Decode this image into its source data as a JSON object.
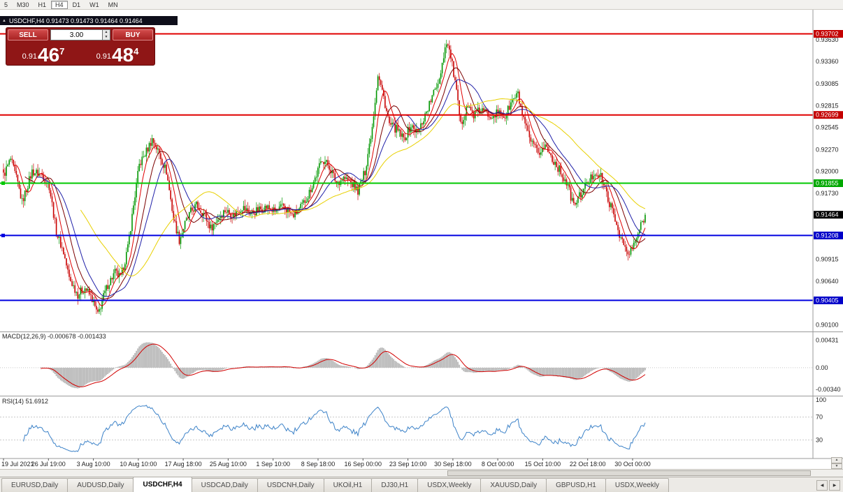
{
  "toolbar": {
    "periods": [
      {
        "label": "5",
        "active": false
      },
      {
        "label": "M30",
        "active": false
      },
      {
        "label": "H1",
        "active": false
      },
      {
        "label": "H4",
        "active": true
      },
      {
        "label": "D1",
        "active": false
      },
      {
        "label": "W1",
        "active": false
      },
      {
        "label": "MN",
        "active": false
      }
    ]
  },
  "chart_header": {
    "title": "USDCHF,H4 0.91473 0.91473 0.91464 0.91464"
  },
  "one_click": {
    "sell_label": "SELL",
    "buy_label": "BUY",
    "volume": "3.00",
    "sell_price": {
      "small": "0.91",
      "big": "46",
      "sup": "7"
    },
    "buy_price": {
      "small": "0.91",
      "big": "48",
      "sup": "4"
    }
  },
  "price_axis": {
    "ticks": [
      "0.93630",
      "0.93360",
      "0.93085",
      "0.92815",
      "0.92545",
      "0.92270",
      "0.92000",
      "0.91730",
      "0.90915",
      "0.90640",
      "0.90100"
    ]
  },
  "price_lines": [
    {
      "price": 0.93702,
      "label": "0.93702",
      "color": "#E00000",
      "label_bg": "#C40000",
      "width": 2,
      "marker": false
    },
    {
      "price": 0.92699,
      "label": "0.92699",
      "color": "#E00000",
      "label_bg": "#C40000",
      "width": 2,
      "marker": false
    },
    {
      "price": 0.91855,
      "label": "0.91855",
      "color": "#00C800",
      "label_bg": "#00A800",
      "width": 2,
      "marker": true
    },
    {
      "price": 0.91208,
      "label": "0.91208",
      "color": "#0000E0",
      "label_bg": "#0000C8",
      "width": 2,
      "marker": true
    },
    {
      "price": 0.90405,
      "label": "0.90405",
      "color": "#0000E0",
      "label_bg": "#0000C8",
      "width": 2,
      "marker": false
    }
  ],
  "current_price": {
    "value": "0.91464",
    "label_bg": "#000000"
  },
  "time_axis": {
    "labels": [
      "19 Jul 2021",
      "26 Jul 19:00",
      "3 Aug 10:00",
      "10 Aug 10:00",
      "17 Aug 18:00",
      "25 Aug 10:00",
      "1 Sep 10:00",
      "8 Sep 18:00",
      "16 Sep 00:00",
      "23 Sep 10:00",
      "30 Sep 18:00",
      "8 Oct 00:00",
      "15 Oct 10:00",
      "22 Oct 18:00",
      "30 Oct 00:00"
    ]
  },
  "indicators": {
    "macd": {
      "label": "MACD(12,26,9) -0.000678 -0.001433",
      "fast": 12,
      "slow": 26,
      "signal": 9,
      "range": [
        -0.0043,
        0.0056
      ],
      "ticks": [
        {
          "v": 0.00431,
          "label": "0.00431"
        },
        {
          "v": 0,
          "label": "0.00"
        },
        {
          "v": -0.0034,
          "label": "-0.00340"
        }
      ],
      "hist_color": "#B8B8B8",
      "signal_color": "#D20000"
    },
    "rsi": {
      "label": "RSI(14) 51.6912",
      "period": 14,
      "value": "51.6912",
      "ticks": [
        {
          "v": 100,
          "label": "100"
        },
        {
          "v": 70,
          "label": "70"
        },
        {
          "v": 30,
          "label": "30"
        }
      ],
      "levels": [
        70,
        30
      ],
      "color": "#3C82C8"
    }
  },
  "chart_data": {
    "type": "candlestick",
    "symbol": "USDCHF",
    "timeframe": "H4",
    "open": "0.91473",
    "high": "0.91473",
    "low": "0.91464",
    "close": "0.91464",
    "n_candles": 450,
    "last_close": 0.91464,
    "price_range": [
      0.9002,
      0.94
    ],
    "up_color": "#009600",
    "down_color": "#C80000",
    "moving_averages": [
      {
        "period": 8,
        "color": "#E00000"
      },
      {
        "period": 16,
        "color": "#7B0000"
      },
      {
        "period": 24,
        "color": "#2020A8"
      },
      {
        "period": 55,
        "color": "#E8D000"
      }
    ],
    "anchors": [
      [
        0,
        0.9195
      ],
      [
        5,
        0.9215
      ],
      [
        10,
        0.9185
      ],
      [
        13,
        0.9162
      ],
      [
        20,
        0.92
      ],
      [
        27,
        0.9196
      ],
      [
        32,
        0.9182
      ],
      [
        37,
        0.9125
      ],
      [
        42,
        0.91
      ],
      [
        46,
        0.9068
      ],
      [
        52,
        0.9048
      ],
      [
        57,
        0.9056
      ],
      [
        62,
        0.9042
      ],
      [
        66,
        0.9022
      ],
      [
        69,
        0.904
      ],
      [
        73,
        0.906
      ],
      [
        78,
        0.9075
      ],
      [
        82,
        0.9068
      ],
      [
        87,
        0.9105
      ],
      [
        91,
        0.9158
      ],
      [
        95,
        0.9208
      ],
      [
        100,
        0.9225
      ],
      [
        104,
        0.924
      ],
      [
        109,
        0.9222
      ],
      [
        114,
        0.92
      ],
      [
        119,
        0.9142
      ],
      [
        123,
        0.9115
      ],
      [
        127,
        0.9135
      ],
      [
        131,
        0.915
      ],
      [
        135,
        0.9158
      ],
      [
        140,
        0.9148
      ],
      [
        145,
        0.913
      ],
      [
        150,
        0.9142
      ],
      [
        155,
        0.9152
      ],
      [
        161,
        0.9146
      ],
      [
        167,
        0.9156
      ],
      [
        173,
        0.9148
      ],
      [
        178,
        0.9152
      ],
      [
        184,
        0.9156
      ],
      [
        190,
        0.915
      ],
      [
        196,
        0.9157
      ],
      [
        202,
        0.9145
      ],
      [
        207,
        0.9152
      ],
      [
        213,
        0.917
      ],
      [
        219,
        0.9196
      ],
      [
        223,
        0.9216
      ],
      [
        228,
        0.9206
      ],
      [
        233,
        0.9186
      ],
      [
        238,
        0.9192
      ],
      [
        243,
        0.9186
      ],
      [
        248,
        0.9176
      ],
      [
        253,
        0.92
      ],
      [
        258,
        0.9256
      ],
      [
        262,
        0.932
      ],
      [
        266,
        0.9292
      ],
      [
        270,
        0.9258
      ],
      [
        275,
        0.9252
      ],
      [
        280,
        0.924
      ],
      [
        285,
        0.9256
      ],
      [
        290,
        0.9248
      ],
      [
        295,
        0.927
      ],
      [
        300,
        0.9292
      ],
      [
        305,
        0.9316
      ],
      [
        310,
        0.9362
      ],
      [
        313,
        0.9342
      ],
      [
        316,
        0.931
      ],
      [
        320,
        0.9256
      ],
      [
        324,
        0.9282
      ],
      [
        329,
        0.927
      ],
      [
        334,
        0.9276
      ],
      [
        340,
        0.927
      ],
      [
        346,
        0.9272
      ],
      [
        351,
        0.9268
      ],
      [
        356,
        0.9288
      ],
      [
        360,
        0.9295
      ],
      [
        364,
        0.9262
      ],
      [
        369,
        0.9236
      ],
      [
        374,
        0.9222
      ],
      [
        379,
        0.9232
      ],
      [
        384,
        0.9216
      ],
      [
        389,
        0.9202
      ],
      [
        394,
        0.9186
      ],
      [
        399,
        0.9158
      ],
      [
        404,
        0.9172
      ],
      [
        409,
        0.9186
      ],
      [
        414,
        0.92
      ],
      [
        418,
        0.9193
      ],
      [
        422,
        0.9172
      ],
      [
        427,
        0.9145
      ],
      [
        432,
        0.9118
      ],
      [
        437,
        0.9096
      ],
      [
        441,
        0.9108
      ],
      [
        445,
        0.9128
      ],
      [
        449,
        0.91464
      ]
    ]
  },
  "tabs": {
    "items": [
      {
        "label": "EURUSD,Daily",
        "active": false
      },
      {
        "label": "AUDUSD,Daily",
        "active": false
      },
      {
        "label": "USDCHF,H4",
        "active": true
      },
      {
        "label": "USDCAD,Daily",
        "active": false
      },
      {
        "label": "USDCNH,Daily",
        "active": false
      },
      {
        "label": "UKOil,H1",
        "active": false
      },
      {
        "label": "DJ30,H1",
        "active": false
      },
      {
        "label": "USDX,Weekly",
        "active": false
      },
      {
        "label": "XAUUSD,Daily",
        "active": false
      },
      {
        "label": "GBPUSD,H1",
        "active": false
      },
      {
        "label": "USDX,Weekly",
        "active": false
      }
    ]
  },
  "icons": {
    "collapse": "▲",
    "spin_up": "▲",
    "spin_down": "▼",
    "scroll_up": "▲",
    "scroll_down": "▼",
    "tab_left": "◀",
    "tab_right": "▶"
  }
}
